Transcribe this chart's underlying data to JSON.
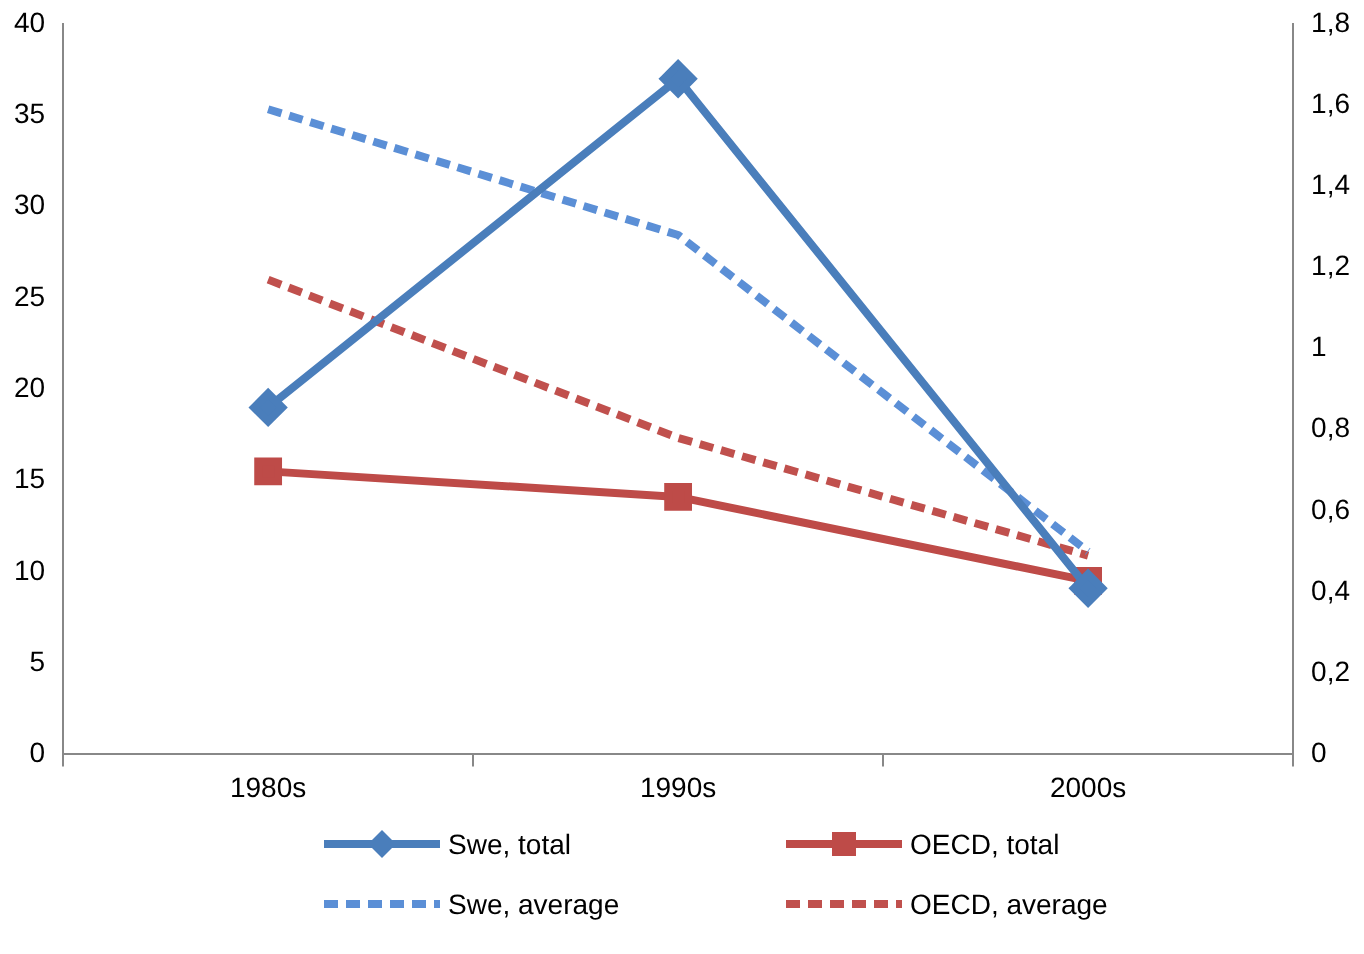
{
  "chart_data": {
    "type": "line",
    "categories": [
      "1980s",
      "1990s",
      "2000s"
    ],
    "series": [
      {
        "name": "Swe, total",
        "color": "#4a7ebb",
        "values": [
          19.0,
          37.0,
          9.1
        ],
        "marker": "diamond",
        "line_style": "solid"
      },
      {
        "name": "OECD, total",
        "color": "#be4b48",
        "values": [
          15.5,
          14.1,
          9.5
        ],
        "marker": "square",
        "line_style": "solid"
      },
      {
        "name": "Swe, average",
        "color": "#5b8fd6",
        "values": [
          1.59,
          1.28,
          0.5
        ],
        "axis": "y2",
        "marker": "none",
        "line_style": "dashed"
      },
      {
        "name": "OECD, average",
        "color": "#c0504d",
        "values": [
          1.17,
          0.78,
          0.49
        ],
        "axis": "y2",
        "marker": "none",
        "line_style": "dashed"
      }
    ],
    "ylim": [
      0,
      40
    ],
    "yticks": [
      0,
      5,
      10,
      15,
      20,
      25,
      30,
      35,
      40
    ],
    "y2lim": [
      0,
      1.8
    ],
    "y2ticks": [
      {
        "value": 0,
        "label": "0"
      },
      {
        "value": 0.2,
        "label": "0,2"
      },
      {
        "value": 0.4,
        "label": "0,4"
      },
      {
        "value": 0.6,
        "label": "0,6"
      },
      {
        "value": 0.8,
        "label": "0,8"
      },
      {
        "value": 1,
        "label": "1"
      },
      {
        "value": 1.2,
        "label": "1,2"
      },
      {
        "value": 1.4,
        "label": "1,4"
      },
      {
        "value": 1.6,
        "label": "1,6"
      },
      {
        "value": 1.8,
        "label": "1,8"
      }
    ],
    "grid": false,
    "legend": "bottom"
  }
}
